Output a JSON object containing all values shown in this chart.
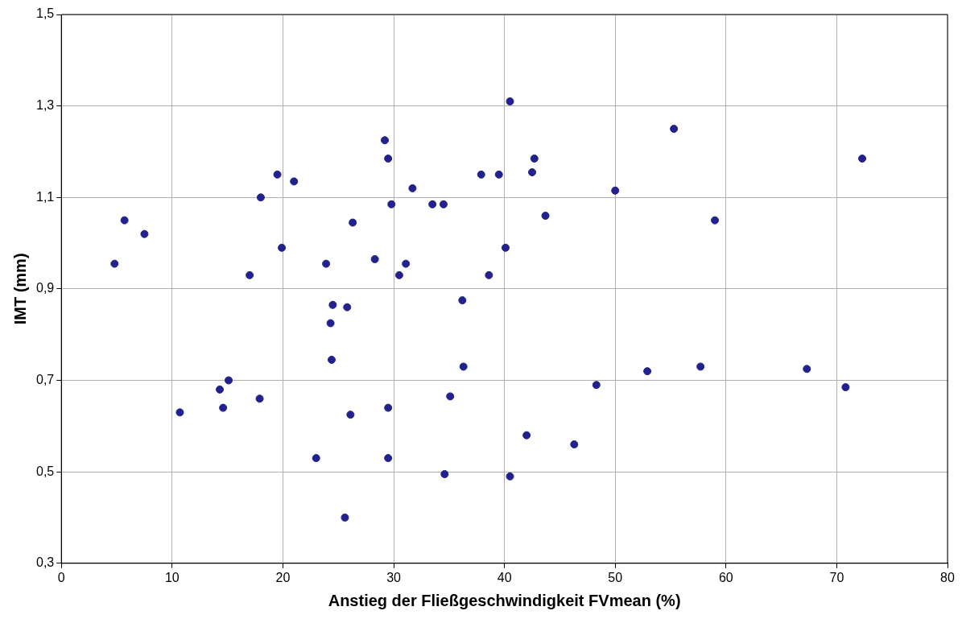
{
  "chart_data": {
    "type": "scatter",
    "xlabel": "Anstieg der Fließgeschwindigkeit FVmean (%)",
    "ylabel": "IMT (mm)",
    "series": [
      {
        "color": "#22228f",
        "x": [
          4.8,
          5.7,
          7.5,
          10.7,
          14.3,
          14.6,
          15.1,
          17.0,
          18.0,
          17.9,
          19.5,
          19.9,
          21.0,
          23.0,
          23.9,
          24.3,
          24.4,
          24.5,
          25.6,
          25.8,
          26.1,
          26.3,
          28.3,
          29.2,
          29.5,
          29.5,
          29.5,
          29.8,
          30.5,
          31.1,
          31.7,
          33.5,
          34.5,
          34.6,
          35.1,
          36.2,
          36.3,
          37.9,
          38.6,
          39.5,
          40.1,
          40.5,
          40.5,
          42.0,
          42.5,
          42.7,
          43.7,
          46.3,
          48.3,
          50.0,
          52.9,
          55.3,
          57.7,
          59.0,
          67.3,
          70.8,
          72.3
        ],
        "values": [
          0.955,
          1.05,
          1.02,
          0.63,
          0.68,
          0.64,
          0.7,
          0.93,
          1.1,
          0.66,
          1.15,
          0.99,
          1.135,
          0.53,
          0.955,
          0.825,
          0.745,
          0.865,
          0.4,
          0.86,
          0.625,
          1.045,
          0.965,
          1.225,
          1.185,
          0.64,
          0.53,
          1.085,
          0.93,
          0.955,
          1.12,
          1.085,
          1.085,
          0.495,
          0.665,
          0.875,
          0.73,
          1.15,
          0.93,
          1.15,
          0.99,
          1.31,
          0.49,
          0.58,
          1.155,
          1.185,
          1.06,
          0.56,
          0.69,
          1.115,
          0.72,
          1.25,
          0.73,
          1.05,
          0.725,
          0.685,
          1.185
        ]
      }
    ],
    "xlim": [
      0,
      80
    ],
    "xticks": [
      0,
      10,
      20,
      30,
      40,
      50,
      60,
      70,
      80
    ],
    "ylim": [
      0.3,
      1.5
    ],
    "yticks": [
      {
        "value": 0.3,
        "label": "0,3"
      },
      {
        "value": 0.5,
        "label": "0,5"
      },
      {
        "value": 0.7,
        "label": "0,7"
      },
      {
        "value": 0.9,
        "label": "0,9"
      },
      {
        "value": 1.1,
        "label": "1,1"
      },
      {
        "value": 1.3,
        "label": "1,3"
      },
      {
        "value": 1.5,
        "label": "1,5"
      }
    ],
    "grid": true,
    "marker": "circle",
    "legend": false
  }
}
